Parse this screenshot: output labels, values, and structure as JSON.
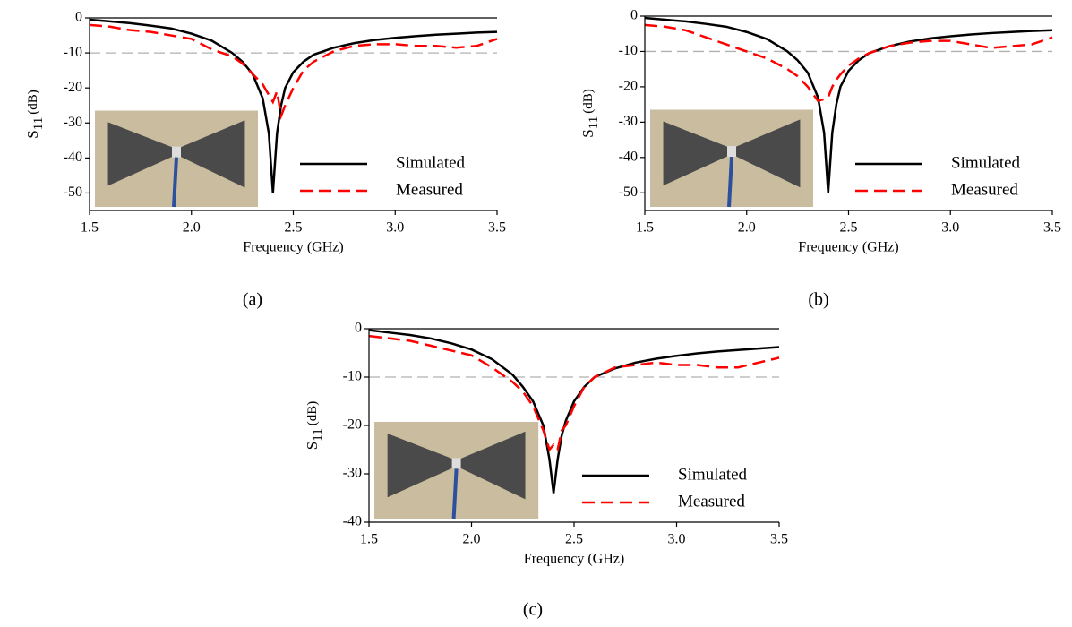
{
  "chart_data": [
    {
      "type": "line",
      "panel_label": "(a)",
      "xlabel": "Frequency (GHz)",
      "ylabel": [
        "S",
        "11",
        "(dB)"
      ],
      "xlim": [
        1.5,
        3.5
      ],
      "xticks": [
        1.5,
        {
          "value": 2,
          "label": "2.0"
        },
        2.5,
        {
          "value": 3,
          "label": "3.0"
        },
        3.5
      ],
      "ylim": [
        -55,
        0
      ],
      "yticks": [
        0,
        -10,
        -20,
        -30,
        -40,
        -50
      ],
      "reference_line": -10,
      "legend": "lower right",
      "x": [
        1.5,
        1.6,
        1.7,
        1.8,
        1.9,
        2.0,
        2.1,
        2.2,
        2.25,
        2.3,
        2.35,
        2.38,
        2.4,
        2.42,
        2.44,
        2.46,
        2.5,
        2.55,
        2.6,
        2.7,
        2.8,
        2.9,
        3.0,
        3.1,
        3.2,
        3.3,
        3.4,
        3.5
      ],
      "series": [
        {
          "name": "Simulated",
          "color": "#000000",
          "values": [
            -0.5,
            -1,
            -1.5,
            -2.2,
            -3,
            -4.5,
            -6.5,
            -10,
            -12.5,
            -16,
            -23,
            -33,
            -50,
            -33,
            -25,
            -20,
            -15.5,
            -12.5,
            -10.5,
            -8.5,
            -7.2,
            -6.3,
            -5.7,
            -5.2,
            -4.8,
            -4.5,
            -4.2,
            -4
          ]
        },
        {
          "name": "Measured",
          "color": "#ff0000",
          "values": [
            -2,
            -2.5,
            -3.5,
            -4,
            -5,
            -6,
            -9,
            -11,
            -13,
            -16,
            -19,
            -22,
            -24,
            -21,
            -28,
            -25,
            -20,
            -15,
            -12.5,
            -9.5,
            -8,
            -7.5,
            -7.5,
            -8,
            -8,
            -8.5,
            -8,
            -6
          ]
        }
      ]
    },
    {
      "type": "line",
      "panel_label": "(b)",
      "xlabel": "Frequency (GHz)",
      "ylabel": [
        "S",
        "11",
        "(dB)"
      ],
      "xlim": [
        1.5,
        3.5
      ],
      "xticks": [
        1.5,
        {
          "value": 2,
          "label": "2.0"
        },
        2.5,
        {
          "value": 3,
          "label": "3.0"
        },
        3.5
      ],
      "ylim": [
        -55,
        0
      ],
      "yticks": [
        0,
        -10,
        -20,
        -30,
        -40,
        -50
      ],
      "reference_line": -10,
      "legend": "lower right",
      "x": [
        1.5,
        1.6,
        1.7,
        1.8,
        1.9,
        2.0,
        2.1,
        2.2,
        2.25,
        2.3,
        2.35,
        2.38,
        2.4,
        2.42,
        2.44,
        2.46,
        2.5,
        2.55,
        2.6,
        2.7,
        2.8,
        2.9,
        3.0,
        3.1,
        3.2,
        3.3,
        3.4,
        3.5
      ],
      "series": [
        {
          "name": "Simulated",
          "color": "#000000",
          "values": [
            -0.5,
            -1,
            -1.5,
            -2.2,
            -3,
            -4.5,
            -6.5,
            -10,
            -12.5,
            -16,
            -23,
            -33,
            -50,
            -33,
            -25,
            -20,
            -15.5,
            -12.5,
            -10.5,
            -8.5,
            -7.2,
            -6.3,
            -5.7,
            -5.2,
            -4.8,
            -4.5,
            -4.2,
            -4
          ]
        },
        {
          "name": "Measured",
          "color": "#ff0000",
          "values": [
            -2.5,
            -3,
            -4,
            -6,
            -8,
            -10,
            -12,
            -15,
            -17,
            -20,
            -24,
            -23.5,
            -23,
            -20,
            -18,
            -16.5,
            -14,
            -12,
            -10.5,
            -8.5,
            -7.5,
            -7,
            -7,
            -8,
            -9,
            -8.5,
            -8,
            -6
          ]
        }
      ]
    },
    {
      "type": "line",
      "panel_label": "(c)",
      "xlabel": "Frequency (GHz)",
      "ylabel": [
        "S",
        "11",
        "(dB)"
      ],
      "xlim": [
        1.5,
        3.5
      ],
      "xticks": [
        1.5,
        {
          "value": 2,
          "label": "2.0"
        },
        2.5,
        {
          "value": 3,
          "label": "3.0"
        },
        3.5
      ],
      "ylim": [
        -40,
        0
      ],
      "yticks": [
        0,
        -10,
        -20,
        -30,
        -40
      ],
      "reference_line": -10,
      "legend": "lower right",
      "x": [
        1.5,
        1.6,
        1.7,
        1.8,
        1.9,
        2.0,
        2.1,
        2.2,
        2.25,
        2.3,
        2.35,
        2.38,
        2.4,
        2.42,
        2.44,
        2.46,
        2.5,
        2.55,
        2.6,
        2.7,
        2.8,
        2.9,
        3.0,
        3.1,
        3.2,
        3.3,
        3.4,
        3.5
      ],
      "series": [
        {
          "name": "Simulated",
          "color": "#000000",
          "values": [
            -0.3,
            -0.8,
            -1.3,
            -2,
            -3,
            -4.3,
            -6.3,
            -9.5,
            -12,
            -15,
            -20,
            -27,
            -34,
            -27,
            -22,
            -19,
            -15,
            -12,
            -10,
            -8.2,
            -7,
            -6.2,
            -5.6,
            -5.1,
            -4.7,
            -4.4,
            -4.1,
            -3.8
          ]
        },
        {
          "name": "Measured",
          "color": "#ff0000",
          "values": [
            -1.5,
            -2,
            -2.5,
            -3.5,
            -4.5,
            -5.5,
            -8,
            -11,
            -13,
            -16,
            -21,
            -25,
            -24,
            -25,
            -21,
            -20,
            -16,
            -12,
            -10,
            -8,
            -7.5,
            -7,
            -7.5,
            -7.5,
            -8,
            -8,
            -7,
            -6
          ]
        }
      ]
    }
  ]
}
